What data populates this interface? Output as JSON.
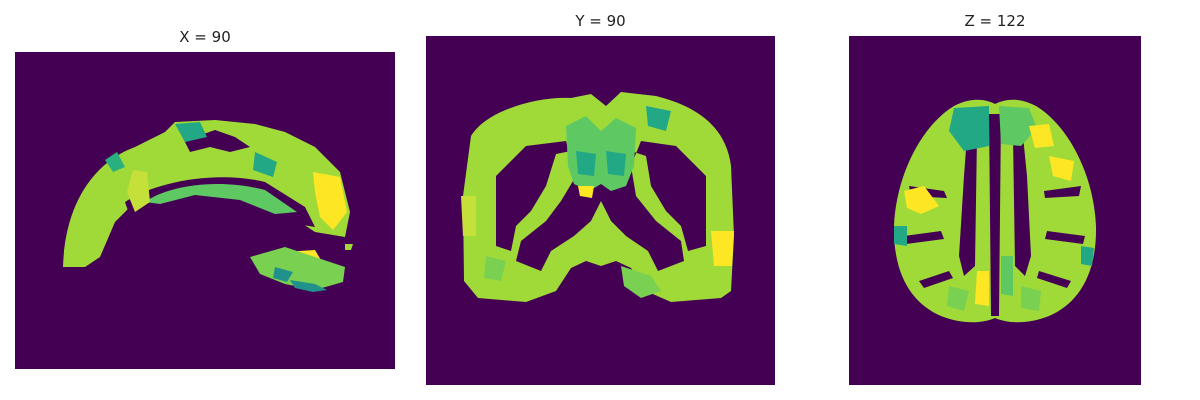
{
  "panels": [
    {
      "title": "X = 90"
    },
    {
      "title": "Y = 90"
    },
    {
      "title": "Z = 122"
    }
  ],
  "colormap": {
    "background": "#440154",
    "low": "#21918c",
    "mid": "#5ec962",
    "high": "#a0da39",
    "top": "#fde725"
  }
}
